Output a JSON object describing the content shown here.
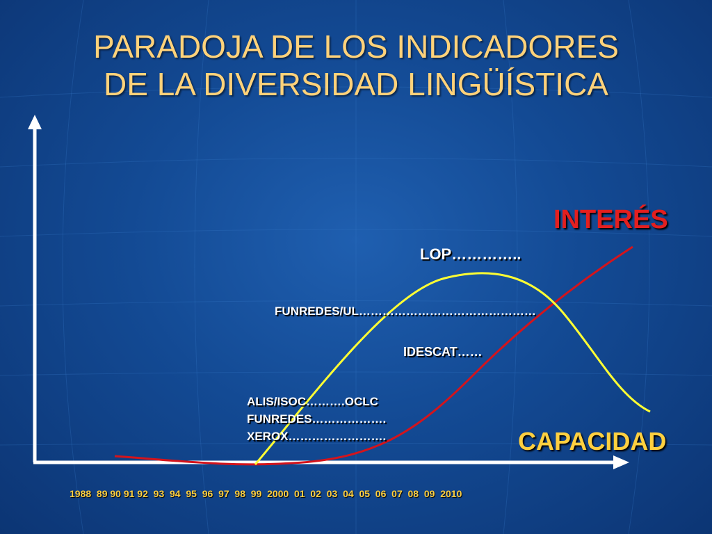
{
  "title": {
    "line1": "PARADOJA DE LOS INDICADORES",
    "line2": "DE LA DIVERSIDAD LINGÜÍSTICA"
  },
  "axes": {
    "y_label": "INTERÉS",
    "x_label": "CAPACIDAD",
    "x_ticks": "1988  89 90 91 92  93  94  95  96  97  98  99  2000  01  02  03  04  05  06  07  08  09  2010"
  },
  "labels": {
    "lop": "LOP…………..",
    "funredes_ul": "FUNREDES/UL………………………………………",
    "idescat": "IDESCAT……",
    "alis": "ALIS/ISOC……….OCLC",
    "funredes": "FUNREDES……………….",
    "xerox": "XEROX……………………."
  },
  "colors": {
    "title": "#ffd27a",
    "interes_curve": "#d4141c",
    "capacidad_curve": "#ffff33",
    "axis": "#ffffff",
    "y_label": "#e41f1f",
    "x_label": "#ffd040"
  }
}
